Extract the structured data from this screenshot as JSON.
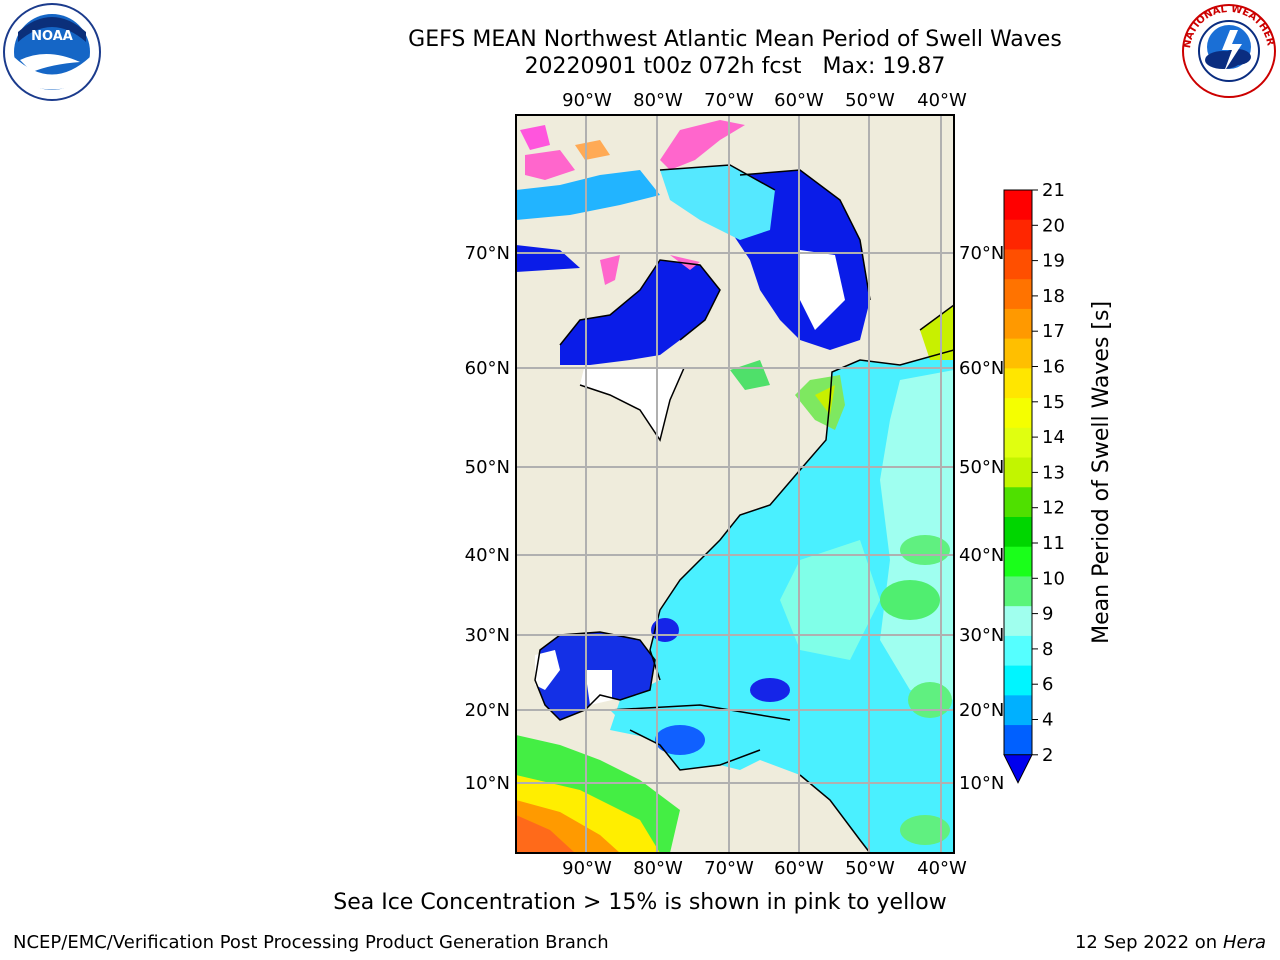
{
  "header": {
    "title_line1": "GEFS MEAN Northwest Atlantic Mean Period of Swell Waves",
    "title_date": "20220901 t00z 072h fcst",
    "title_max": "Max: 19.87"
  },
  "logos": {
    "left": {
      "name": "noaa-logo",
      "text": "NOAA"
    },
    "right": {
      "name": "nws-logo",
      "text": "NATIONAL WEATHER SERVICE"
    }
  },
  "map": {
    "lon_labels": [
      "90°W",
      "80°W",
      "70°W",
      "60°W",
      "50°W",
      "40°W"
    ],
    "lat_labels": [
      "70°N",
      "60°N",
      "50°N",
      "40°N",
      "30°N",
      "20°N",
      "10°N"
    ],
    "colors": {
      "land": "#efecdc",
      "grid": "#b0b0b0",
      "coast": "#000000"
    }
  },
  "colorbar": {
    "label": "Mean Period of Swell Waves [s]",
    "ticks": [
      "21",
      "20",
      "19",
      "18",
      "17",
      "16",
      "15",
      "14",
      "13",
      "12",
      "11",
      "10",
      "9",
      "8",
      "6",
      "4",
      "2"
    ],
    "colors_top_to_bottom": [
      "#ff0000",
      "#ff2600",
      "#ff4f00",
      "#ff7300",
      "#ff9900",
      "#ffbf00",
      "#ffe600",
      "#f5ff00",
      "#e0ff10",
      "#c2f500",
      "#4fe000",
      "#00d600",
      "#1aff1a",
      "#5af57a",
      "#a0ffee",
      "#55ffff",
      "#00f5ff",
      "#00b0ff",
      "#0060ff"
    ],
    "under_color": "#0000ee"
  },
  "footer": {
    "note": "Sea Ice Concentration > 15% is shown in pink to yellow",
    "credit": "NCEP/EMC/Verification Post Processing Product Generation Branch",
    "date": "12 Sep 2022 on",
    "machine": "Hera"
  }
}
